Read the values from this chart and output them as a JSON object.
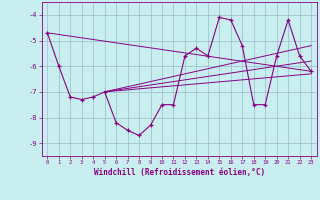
{
  "xlabel": "Windchill (Refroidissement éolien,°C)",
  "background_color": "#c8eef0",
  "line_color": "#880088",
  "grid_color": "#99bbcc",
  "xlim": [
    -0.5,
    23.5
  ],
  "ylim": [
    -9.5,
    -3.5
  ],
  "yticks": [
    -9,
    -8,
    -7,
    -6,
    -5,
    -4
  ],
  "xticks": [
    0,
    1,
    2,
    3,
    4,
    5,
    6,
    7,
    8,
    9,
    10,
    11,
    12,
    13,
    14,
    15,
    16,
    17,
    18,
    19,
    20,
    21,
    22,
    23
  ],
  "main_data_x": [
    0,
    1,
    2,
    3,
    4,
    5,
    6,
    7,
    8,
    9,
    10,
    11,
    12,
    13,
    14,
    15,
    16,
    17,
    18,
    19,
    20,
    21,
    22,
    23
  ],
  "main_data_y": [
    -4.7,
    -6.0,
    -7.2,
    -7.3,
    -7.2,
    -7.0,
    -8.2,
    -8.5,
    -8.7,
    -8.3,
    -7.5,
    -7.5,
    -5.6,
    -5.3,
    -5.6,
    -4.1,
    -4.2,
    -5.2,
    -7.5,
    -7.5,
    -5.6,
    -4.2,
    -5.6,
    -6.2
  ],
  "trend1_x": [
    5,
    23
  ],
  "trend1_y": [
    -7.0,
    -5.2
  ],
  "trend2_x": [
    5,
    23
  ],
  "trend2_y": [
    -7.0,
    -5.8
  ],
  "trend3_x": [
    5,
    23
  ],
  "trend3_y": [
    -7.0,
    -6.3
  ],
  "trend4_x": [
    0,
    23
  ],
  "trend4_y": [
    -4.7,
    -6.2
  ]
}
